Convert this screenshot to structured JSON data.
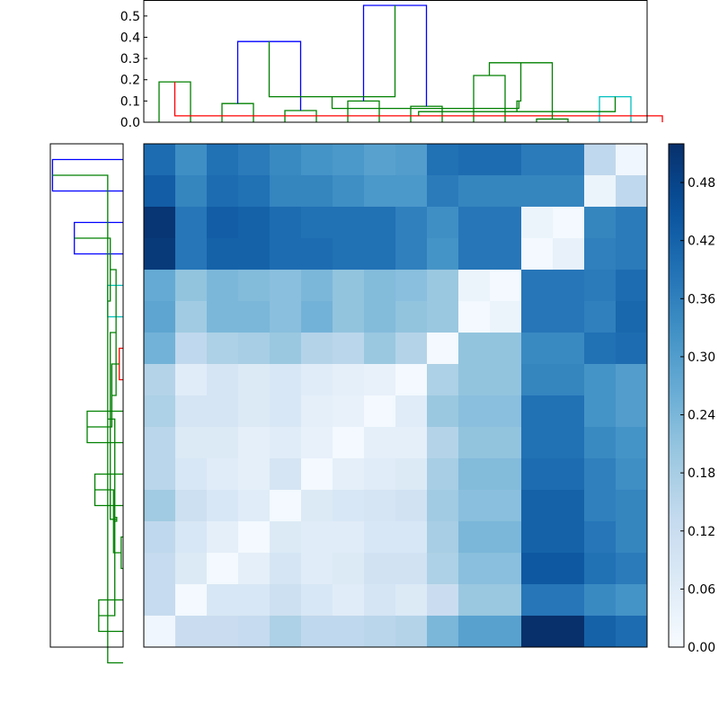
{
  "chart_data": [
    {
      "type": "dendrogram",
      "orientation": "top",
      "ylim": [
        0.0,
        0.55
      ],
      "yticks": [
        "0.0",
        "0.1",
        "0.2",
        "0.3",
        "0.4",
        "0.5"
      ],
      "leaves": 16,
      "links": [
        {
          "pair": [
            0,
            1
          ],
          "height": 0.19,
          "color": "#008000"
        },
        {
          "pair": [
            2,
            3
          ],
          "height": 0.088,
          "color": "#008000"
        },
        {
          "pair": [
            4,
            5
          ],
          "height": 0.055,
          "color": "#008000"
        },
        {
          "pair": [
            6,
            7
          ],
          "height": 0.1,
          "color": "#008000"
        },
        {
          "pair": [
            8,
            9
          ],
          "height": 0.075,
          "color": "#008000"
        },
        {
          "pair": [
            10,
            11
          ],
          "height": 0.22,
          "color": "#008000"
        },
        {
          "pair": [
            12,
            13
          ],
          "height": 0.015,
          "color": "#008000"
        },
        {
          "pair": [
            14,
            15
          ],
          "height": 0.12,
          "color": "#00bfbf"
        },
        {
          "pair": [
            16,
            17
          ],
          "height": 0.03,
          "color": "#ff0000"
        },
        {
          "pair": [
            18,
            19
          ],
          "height": 0.38,
          "color": "#0000ff"
        },
        {
          "pair": [
            20,
            21
          ],
          "height": 0.55,
          "color": "#0000ff"
        },
        {
          "pair": [
            22,
            23
          ],
          "height": 0.28,
          "color": "#008000"
        },
        {
          "pair": [
            24,
            25
          ],
          "height": 0.05,
          "color": "#008000"
        },
        {
          "pair": [
            26,
            27
          ],
          "height": 0.12,
          "color": "#008000"
        },
        {
          "pair": [
            28,
            29
          ],
          "height": 0.1,
          "color": "#008000"
        },
        {
          "pair": [
            30,
            31
          ],
          "height": 0.065,
          "color": "#008000"
        }
      ]
    },
    {
      "type": "dendrogram",
      "orientation": "left",
      "links": [
        {
          "pair": [
            0,
            1
          ],
          "height": 0.55,
          "color": "#0000ff"
        },
        {
          "pair": [
            2,
            3
          ],
          "height": 0.38,
          "color": "#0000ff"
        },
        {
          "pair": [
            4,
            5
          ],
          "height": 0.12,
          "color": "#00bfbf"
        },
        {
          "pair": [
            6,
            7
          ],
          "height": 0.03,
          "color": "#ff0000"
        },
        {
          "pair": [
            8,
            9
          ],
          "height": 0.28,
          "color": "#008000"
        },
        {
          "pair": [
            10,
            11
          ],
          "height": 0.22,
          "color": "#008000"
        },
        {
          "pair": [
            12,
            13
          ],
          "height": 0.015,
          "color": "#008000"
        },
        {
          "pair": [
            14,
            15
          ],
          "height": 0.19,
          "color": "#008000"
        },
        {
          "pair": [
            16,
            17
          ],
          "height": 0.12,
          "color": "#008000"
        },
        {
          "pair": [
            18,
            19
          ],
          "height": 0.1,
          "color": "#008000"
        },
        {
          "pair": [
            20,
            21
          ],
          "height": 0.088,
          "color": "#008000"
        },
        {
          "pair": [
            22,
            23
          ],
          "height": 0.075,
          "color": "#008000"
        },
        {
          "pair": [
            24,
            25
          ],
          "height": 0.065,
          "color": "#008000"
        },
        {
          "pair": [
            26,
            27
          ],
          "height": 0.055,
          "color": "#008000"
        },
        {
          "pair": [
            28,
            29
          ],
          "height": 0.05,
          "color": "#008000"
        },
        {
          "pair": [
            30,
            31
          ],
          "height": 0.1,
          "color": "#008000"
        }
      ]
    },
    {
      "type": "heatmap",
      "colormap": "Blues",
      "vmin": 0.0,
      "vmax": 0.52,
      "rows": 16,
      "cols": 16,
      "values": [
        [
          0.4,
          0.33,
          0.39,
          0.37,
          0.34,
          0.32,
          0.31,
          0.29,
          0.3,
          0.39,
          0.4,
          0.4,
          0.37,
          0.37,
          0.14,
          0.02
        ],
        [
          0.43,
          0.35,
          0.4,
          0.39,
          0.35,
          0.35,
          0.33,
          0.31,
          0.31,
          0.37,
          0.35,
          0.35,
          0.35,
          0.35,
          0.03,
          0.14
        ],
        [
          0.51,
          0.38,
          0.43,
          0.42,
          0.4,
          0.39,
          0.39,
          0.39,
          0.36,
          0.33,
          0.38,
          0.38,
          0.03,
          0.01,
          0.35,
          0.37
        ],
        [
          0.5,
          0.38,
          0.42,
          0.42,
          0.4,
          0.4,
          0.39,
          0.39,
          0.36,
          0.32,
          0.38,
          0.38,
          0.01,
          0.04,
          0.36,
          0.37
        ],
        [
          0.27,
          0.21,
          0.24,
          0.23,
          0.22,
          0.24,
          0.21,
          0.23,
          0.22,
          0.2,
          0.03,
          0.01,
          0.38,
          0.38,
          0.37,
          0.4
        ],
        [
          0.28,
          0.19,
          0.24,
          0.24,
          0.22,
          0.25,
          0.21,
          0.23,
          0.21,
          0.2,
          0.01,
          0.03,
          0.38,
          0.38,
          0.36,
          0.41
        ],
        [
          0.25,
          0.14,
          0.17,
          0.18,
          0.2,
          0.16,
          0.15,
          0.2,
          0.16,
          0.01,
          0.21,
          0.21,
          0.34,
          0.34,
          0.39,
          0.4
        ],
        [
          0.16,
          0.06,
          0.09,
          0.07,
          0.08,
          0.06,
          0.05,
          0.04,
          0.01,
          0.17,
          0.21,
          0.21,
          0.35,
          0.35,
          0.32,
          0.3
        ],
        [
          0.17,
          0.09,
          0.09,
          0.07,
          0.08,
          0.05,
          0.04,
          0.01,
          0.06,
          0.2,
          0.22,
          0.22,
          0.39,
          0.39,
          0.32,
          0.3
        ],
        [
          0.15,
          0.07,
          0.07,
          0.05,
          0.06,
          0.04,
          0.01,
          0.05,
          0.05,
          0.16,
          0.21,
          0.21,
          0.39,
          0.39,
          0.34,
          0.32
        ],
        [
          0.15,
          0.08,
          0.06,
          0.05,
          0.09,
          0.01,
          0.05,
          0.06,
          0.07,
          0.18,
          0.23,
          0.23,
          0.4,
          0.4,
          0.36,
          0.33
        ],
        [
          0.19,
          0.11,
          0.08,
          0.06,
          0.01,
          0.07,
          0.08,
          0.09,
          0.1,
          0.19,
          0.22,
          0.22,
          0.42,
          0.42,
          0.36,
          0.35
        ],
        [
          0.14,
          0.08,
          0.05,
          0.01,
          0.07,
          0.06,
          0.06,
          0.08,
          0.08,
          0.18,
          0.24,
          0.24,
          0.42,
          0.42,
          0.38,
          0.35
        ],
        [
          0.13,
          0.07,
          0.01,
          0.05,
          0.09,
          0.06,
          0.07,
          0.1,
          0.1,
          0.17,
          0.22,
          0.22,
          0.44,
          0.44,
          0.39,
          0.37
        ],
        [
          0.13,
          0.01,
          0.08,
          0.08,
          0.11,
          0.08,
          0.06,
          0.09,
          0.07,
          0.12,
          0.2,
          0.2,
          0.38,
          0.38,
          0.34,
          0.32
        ],
        [
          0.02,
          0.12,
          0.12,
          0.13,
          0.17,
          0.14,
          0.14,
          0.15,
          0.16,
          0.24,
          0.29,
          0.29,
          0.52,
          0.52,
          0.42,
          0.4
        ]
      ]
    },
    {
      "type": "colorbar",
      "vmin": 0.0,
      "vmax": 0.52,
      "ticks": [
        "0.00",
        "0.06",
        "0.12",
        "0.18",
        "0.24",
        "0.30",
        "0.36",
        "0.42",
        "0.48"
      ]
    }
  ]
}
